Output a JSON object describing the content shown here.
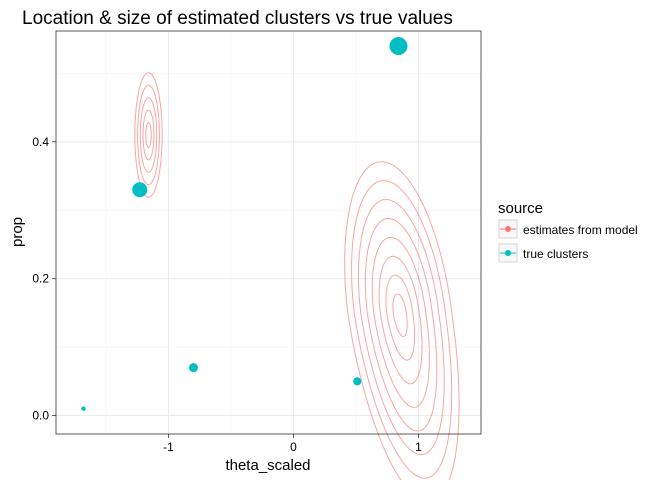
{
  "chart_data": {
    "type": "scatter",
    "title": "Location & size of estimated clusters vs true values",
    "xlabel": "theta_scaled",
    "ylabel": "prop",
    "xlim": [
      -1.9,
      1.5
    ],
    "ylim": [
      -0.027,
      0.562
    ],
    "xticks": [
      {
        "value": -1,
        "label": "-1"
      },
      {
        "value": 0,
        "label": "0"
      },
      {
        "value": 1,
        "label": "1"
      }
    ],
    "yticks": [
      {
        "value": 0.0,
        "label": "0.0"
      },
      {
        "value": 0.2,
        "label": "0.2"
      },
      {
        "value": 0.4,
        "label": "0.4"
      }
    ],
    "grid": true,
    "legend": {
      "title": "source",
      "placement": "right",
      "entries": [
        {
          "label": "estimates from model",
          "color": "#F8766D"
        },
        {
          "label": "true clusters",
          "color": "#00BFC4"
        }
      ]
    },
    "series": [
      {
        "name": "true clusters",
        "kind": "points",
        "color": "#00BFC4",
        "x": [
          -1.68,
          -1.23,
          -0.8,
          0.51,
          0.84
        ],
        "y": [
          0.01,
          0.33,
          0.07,
          0.05,
          0.54
        ],
        "size": [
          0.01,
          0.33,
          0.07,
          0.05,
          0.54
        ]
      },
      {
        "name": "estimates from model",
        "kind": "density-contours",
        "color": "#F8766D",
        "clusters": [
          {
            "center_x": -1.16,
            "center_y": 0.41,
            "sd_x": 0.042,
            "sd_y": 0.035,
            "levels": 5
          },
          {
            "center_x": 0.85,
            "center_y": 0.15,
            "sd_x": 0.16,
            "sd_y": 0.085,
            "levels": 8
          }
        ]
      }
    ]
  }
}
